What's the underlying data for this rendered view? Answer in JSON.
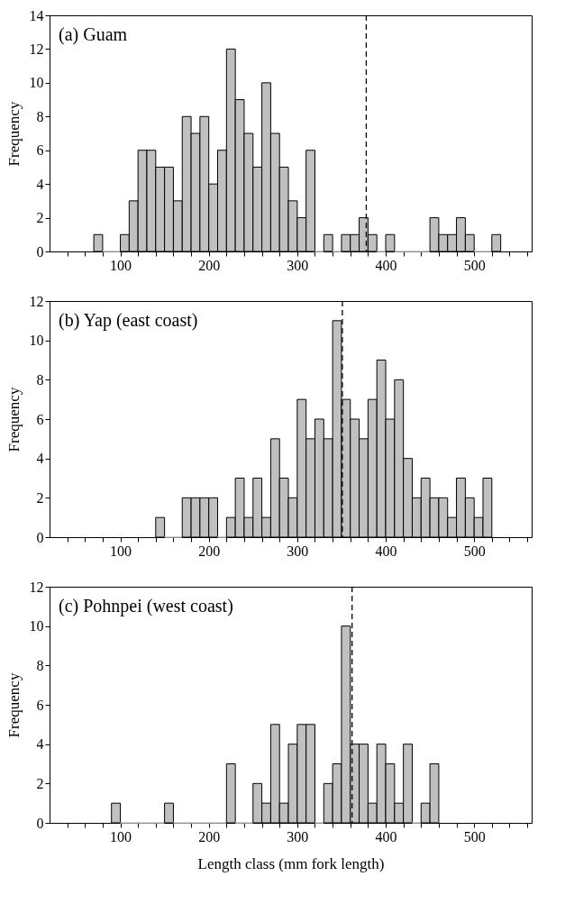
{
  "chart_data": [
    {
      "type": "histogram",
      "annotations": [
        "(a) Guam"
      ],
      "ylabel": "Frequency",
      "color": "#c0c0c0",
      "bins": [
        70,
        80,
        90,
        100,
        110,
        120,
        130,
        140,
        150,
        160,
        170,
        180,
        190,
        200,
        210,
        220,
        230,
        240,
        250,
        260,
        270,
        280,
        290,
        300,
        310,
        320,
        330,
        340,
        350,
        360,
        370,
        380,
        390,
        400,
        410,
        420,
        430,
        440,
        450,
        460,
        470,
        480,
        490,
        500,
        510,
        520,
        530
      ],
      "values": [
        1,
        0,
        0,
        1,
        3,
        6,
        6,
        5,
        5,
        3,
        8,
        7,
        8,
        4,
        6,
        12,
        9,
        7,
        5,
        10,
        7,
        5,
        3,
        2,
        6,
        0,
        1,
        0,
        1,
        1,
        2,
        1,
        0,
        1,
        0,
        0,
        0,
        0,
        2,
        1,
        1,
        2,
        1,
        0,
        0,
        1
      ],
      "xlim": [
        20,
        565
      ],
      "ylim": [
        0,
        14
      ],
      "yticks": [
        0,
        2,
        4,
        6,
        8,
        10,
        12,
        14
      ],
      "xticks": [
        {
          "value": 40,
          "label": null
        },
        {
          "value": 60,
          "label": null
        },
        {
          "value": 80,
          "label": null
        },
        100,
        {
          "value": 120,
          "label": null
        },
        {
          "value": 140,
          "label": null
        },
        {
          "value": 160,
          "label": null
        },
        {
          "value": 180,
          "label": null
        },
        200,
        {
          "value": 220,
          "label": null
        },
        {
          "value": 240,
          "label": null
        },
        {
          "value": 260,
          "label": null
        },
        {
          "value": 280,
          "label": null
        },
        300,
        {
          "value": 320,
          "label": null
        },
        {
          "value": 340,
          "label": null
        },
        {
          "value": 360,
          "label": null
        },
        {
          "value": 380,
          "label": null
        },
        400,
        {
          "value": 420,
          "label": null
        },
        {
          "value": 440,
          "label": null
        },
        {
          "value": 460,
          "label": null
        },
        {
          "value": 480,
          "label": null
        },
        500,
        {
          "value": 520,
          "label": null
        },
        {
          "value": 540,
          "label": null
        },
        {
          "value": 560,
          "label": null
        }
      ],
      "ref_lines": [
        {
          "axis": "x",
          "value": 378,
          "color": "#000000",
          "line_style": "dashed"
        }
      ]
    },
    {
      "type": "histogram",
      "annotations": [
        "(b) Yap (east coast)"
      ],
      "ylabel": "Frequency",
      "color": "#c0c0c0",
      "bins": [
        140,
        150,
        160,
        170,
        180,
        190,
        200,
        210,
        220,
        230,
        240,
        250,
        260,
        270,
        280,
        290,
        300,
        310,
        320,
        330,
        340,
        350,
        360,
        370,
        380,
        390,
        400,
        410,
        420,
        430,
        440,
        450,
        460,
        470,
        480,
        490,
        500,
        510,
        520
      ],
      "values": [
        1,
        0,
        0,
        2,
        2,
        2,
        2,
        0,
        1,
        3,
        1,
        3,
        1,
        5,
        3,
        2,
        7,
        5,
        6,
        5,
        11,
        7,
        6,
        5,
        7,
        9,
        6,
        8,
        4,
        2,
        3,
        2,
        2,
        1,
        3,
        2,
        1,
        3
      ],
      "xlim": [
        20,
        565
      ],
      "ylim": [
        0,
        12
      ],
      "yticks": [
        0,
        2,
        4,
        6,
        8,
        10,
        12
      ],
      "xticks": [
        {
          "value": 40,
          "label": null
        },
        {
          "value": 60,
          "label": null
        },
        {
          "value": 80,
          "label": null
        },
        100,
        {
          "value": 120,
          "label": null
        },
        {
          "value": 140,
          "label": null
        },
        {
          "value": 160,
          "label": null
        },
        {
          "value": 180,
          "label": null
        },
        200,
        {
          "value": 220,
          "label": null
        },
        {
          "value": 240,
          "label": null
        },
        {
          "value": 260,
          "label": null
        },
        {
          "value": 280,
          "label": null
        },
        300,
        {
          "value": 320,
          "label": null
        },
        {
          "value": 340,
          "label": null
        },
        {
          "value": 360,
          "label": null
        },
        {
          "value": 380,
          "label": null
        },
        400,
        {
          "value": 420,
          "label": null
        },
        {
          "value": 440,
          "label": null
        },
        {
          "value": 460,
          "label": null
        },
        {
          "value": 480,
          "label": null
        },
        500,
        {
          "value": 520,
          "label": null
        },
        {
          "value": 540,
          "label": null
        },
        {
          "value": 560,
          "label": null
        }
      ],
      "ref_lines": [
        {
          "axis": "x",
          "value": 351,
          "color": "#000000",
          "line_style": "dashed"
        }
      ]
    },
    {
      "type": "histogram",
      "annotations": [
        "(c) Pohnpei (west coast)"
      ],
      "ylabel": "Frequency",
      "xlabel": "Length class (mm fork length)",
      "color": "#c0c0c0",
      "bins": [
        90,
        100,
        110,
        120,
        130,
        140,
        150,
        160,
        170,
        180,
        190,
        200,
        210,
        220,
        230,
        240,
        250,
        260,
        270,
        280,
        290,
        300,
        310,
        320,
        330,
        340,
        350,
        360,
        370,
        380,
        390,
        400,
        410,
        420,
        430,
        440,
        450,
        460
      ],
      "values": [
        1,
        0,
        0,
        0,
        0,
        0,
        1,
        0,
        0,
        0,
        0,
        0,
        0,
        3,
        0,
        0,
        2,
        1,
        5,
        1,
        4,
        5,
        5,
        0,
        2,
        3,
        10,
        4,
        4,
        1,
        4,
        3,
        1,
        4,
        0,
        1,
        3
      ],
      "xlim": [
        20,
        565
      ],
      "ylim": [
        0,
        12
      ],
      "yticks": [
        0,
        2,
        4,
        6,
        8,
        10,
        12
      ],
      "xticks": [
        {
          "value": 40,
          "label": null
        },
        {
          "value": 60,
          "label": null
        },
        {
          "value": 80,
          "label": null
        },
        100,
        {
          "value": 120,
          "label": null
        },
        {
          "value": 140,
          "label": null
        },
        {
          "value": 160,
          "label": null
        },
        {
          "value": 180,
          "label": null
        },
        200,
        {
          "value": 220,
          "label": null
        },
        {
          "value": 240,
          "label": null
        },
        {
          "value": 260,
          "label": null
        },
        {
          "value": 280,
          "label": null
        },
        300,
        {
          "value": 320,
          "label": null
        },
        {
          "value": 340,
          "label": null
        },
        {
          "value": 360,
          "label": null
        },
        {
          "value": 380,
          "label": null
        },
        400,
        {
          "value": 420,
          "label": null
        },
        {
          "value": 440,
          "label": null
        },
        {
          "value": 460,
          "label": null
        },
        {
          "value": 480,
          "label": null
        },
        500,
        {
          "value": 520,
          "label": null
        },
        {
          "value": 540,
          "label": null
        },
        {
          "value": 560,
          "label": null
        }
      ],
      "ref_lines": [
        {
          "axis": "x",
          "value": 362,
          "color": "#000000",
          "line_style": "dashed"
        }
      ]
    }
  ]
}
